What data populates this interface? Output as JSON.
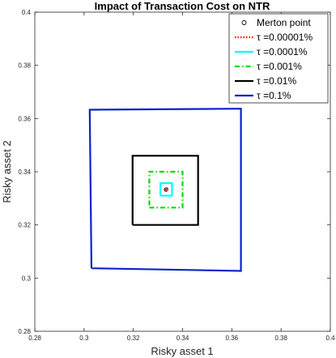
{
  "chart_data": {
    "type": "line",
    "title": "Impact of Transaction Cost on NTR",
    "xlabel": "Risky asset 1",
    "ylabel": "Risky asset 2",
    "xlim": [
      0.28,
      0.4
    ],
    "ylim": [
      0.28,
      0.4
    ],
    "xticks": [
      "0.28",
      "0.3",
      "0.32",
      "0.34",
      "0.36",
      "0.38",
      "0.4"
    ],
    "yticks": [
      "0.28",
      "0.3",
      "0.32",
      "0.34",
      "0.36",
      "0.38",
      "0.4"
    ],
    "grid": false,
    "legend_position": "top-right",
    "merton_point": {
      "name": "Merton point",
      "x": 0.3333,
      "y": 0.3333,
      "color": "#000000"
    },
    "series": [
      {
        "name": "τ =0.00001%",
        "color": "#ff0000",
        "style": "dotted",
        "x": [
          0.333,
          0.3337,
          0.3337,
          0.333,
          0.333
        ],
        "y": [
          0.333,
          0.333,
          0.3337,
          0.3337,
          0.333
        ]
      },
      {
        "name": "τ =0.0001%",
        "color": "#00ffff",
        "style": "solid",
        "x": [
          0.331,
          0.3357,
          0.3357,
          0.331,
          0.331
        ],
        "y": [
          0.331,
          0.331,
          0.3357,
          0.3357,
          0.331
        ]
      },
      {
        "name": "τ =0.001%",
        "color": "#00dd00",
        "style": "dashdot",
        "x": [
          0.3265,
          0.34,
          0.34,
          0.3265,
          0.3265
        ],
        "y": [
          0.3265,
          0.3265,
          0.34,
          0.34,
          0.3265
        ]
      },
      {
        "name": "τ =0.01%",
        "color": "#000000",
        "style": "solid",
        "x": [
          0.3197,
          0.3463,
          0.3463,
          0.3197,
          0.3197
        ],
        "y": [
          0.32,
          0.32,
          0.346,
          0.346,
          0.32
        ]
      },
      {
        "name": "τ =0.1%",
        "color": "#0a22cc",
        "style": "solid",
        "x": [
          0.303,
          0.3637,
          0.3637,
          0.3023,
          0.303
        ],
        "y": [
          0.3037,
          0.3027,
          0.3637,
          0.3633,
          0.3037
        ]
      }
    ]
  }
}
